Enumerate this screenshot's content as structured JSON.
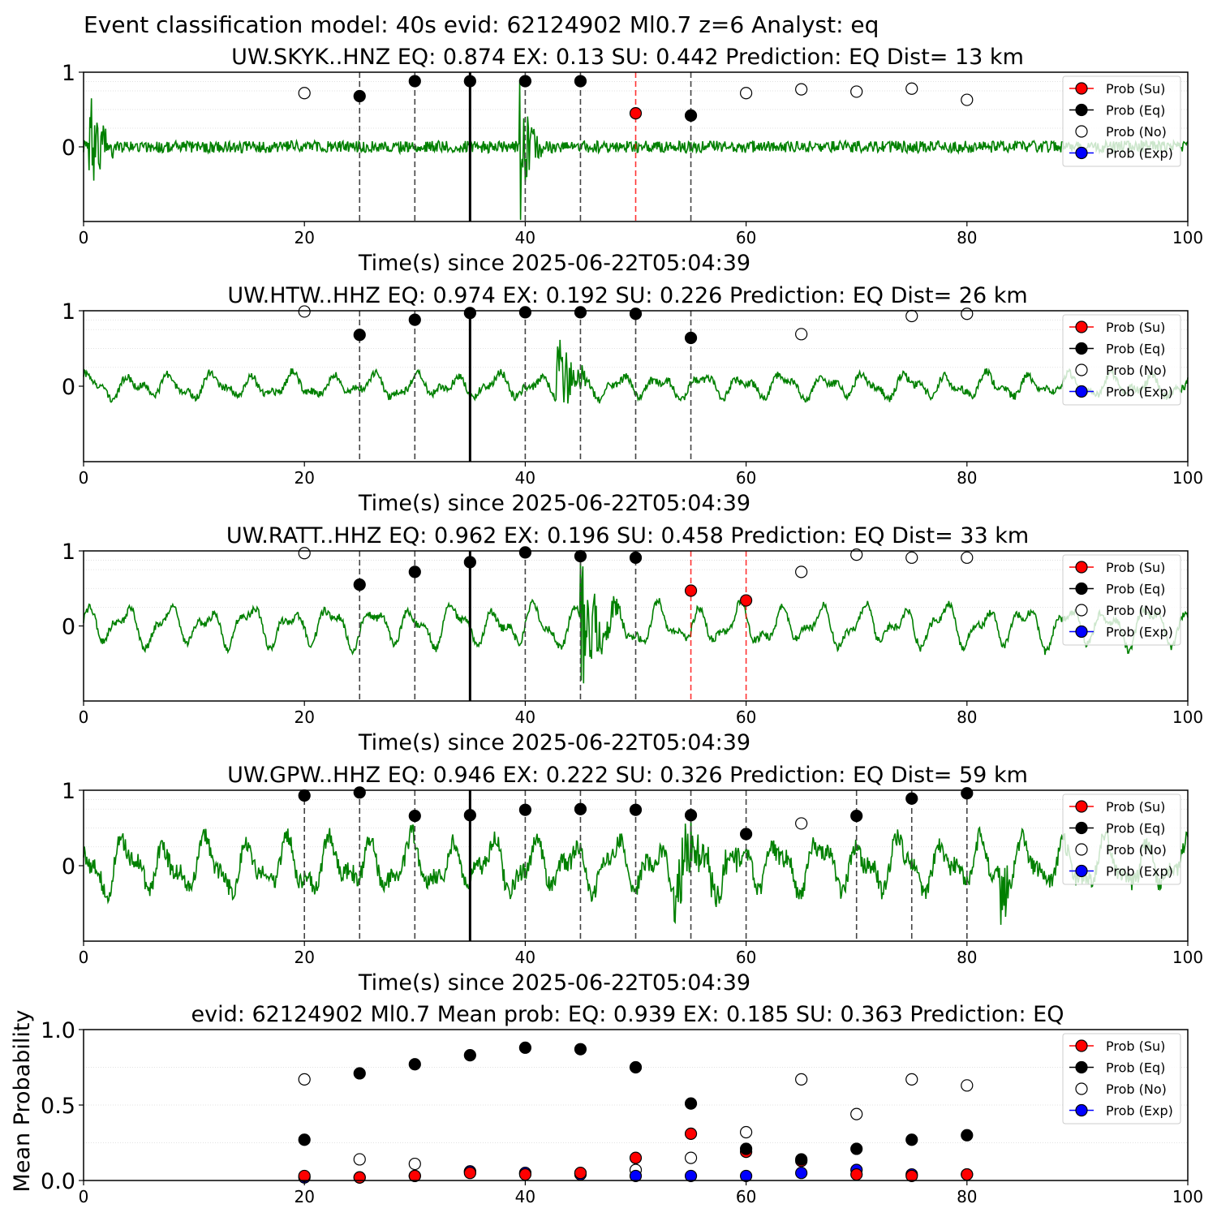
{
  "figure": {
    "suptitle": "Event classification model: 40s evid: 62124902 Ml0.7 z=6 Analyst: eq",
    "colors": {
      "eq": "#000000",
      "su": "#ff0000",
      "no": "#ffffff",
      "exp": "#0000ff",
      "trace": "#008000",
      "trace_overlay": "#c8e6c9",
      "grid": "#d9d9d9"
    }
  },
  "legend_items": [
    "Prob (Su)",
    "Prob (Eq)",
    "Prob (No)",
    "Prob (Exp)"
  ],
  "chart_data": [
    {
      "type": "line",
      "title": "UW.SKYK..HNZ   EQ: 0.874  EX: 0.13  SU: 0.442   Prediction: EQ    Dist= 13 km",
      "xlabel": "Time(s) since 2025-06-22T05:04:39",
      "ylabel": "",
      "xlim": [
        0,
        100
      ],
      "ylim": [
        -1,
        1
      ],
      "xticks": [
        "0",
        "20",
        "40",
        "60",
        "80",
        "100"
      ],
      "yticks": [
        "0",
        "1"
      ],
      "legend": "upper-right",
      "pick_line": 35,
      "window_lines": [
        {
          "x": 25,
          "c": "eq"
        },
        {
          "x": 30,
          "c": "eq"
        },
        {
          "x": 40,
          "c": "eq"
        },
        {
          "x": 45,
          "c": "eq"
        },
        {
          "x": 50,
          "c": "su"
        },
        {
          "x": 55,
          "c": "eq"
        }
      ],
      "bursts": [
        [
          0.5,
          1.0,
          0.8
        ],
        [
          39.5,
          0.9,
          1.0
        ]
      ],
      "noise_amp": 0.08,
      "wave_amp": 0.0,
      "series": [
        {
          "name": "Prob (Eq)",
          "points": [
            [
              25,
              0.68
            ],
            [
              30,
              0.88
            ],
            [
              35,
              0.88
            ],
            [
              40,
              0.88
            ],
            [
              45,
              0.88
            ],
            [
              55,
              0.42
            ]
          ]
        },
        {
          "name": "Prob (Su)",
          "points": [
            [
              50,
              0.45
            ]
          ]
        },
        {
          "name": "Prob (No)",
          "points": [
            [
              20,
              0.72
            ],
            [
              60,
              0.72
            ],
            [
              65,
              0.77
            ],
            [
              70,
              0.74
            ],
            [
              75,
              0.78
            ],
            [
              80,
              0.63
            ]
          ]
        },
        {
          "name": "Prob (Exp)",
          "points": []
        }
      ]
    },
    {
      "type": "line",
      "title": "UW.HTW..HHZ   EQ: 0.974  EX: 0.192  SU: 0.226   Prediction: EQ    Dist= 26 km",
      "xlabel": "Time(s) since 2025-06-22T05:04:39",
      "ylabel": "",
      "xlim": [
        0,
        100
      ],
      "ylim": [
        -1,
        1
      ],
      "xticks": [
        "0",
        "20",
        "40",
        "60",
        "80",
        "100"
      ],
      "yticks": [
        "0",
        "1"
      ],
      "legend": "upper-right",
      "pick_line": 35,
      "window_lines": [
        {
          "x": 25,
          "c": "eq"
        },
        {
          "x": 30,
          "c": "eq"
        },
        {
          "x": 40,
          "c": "eq"
        },
        {
          "x": 45,
          "c": "eq"
        },
        {
          "x": 50,
          "c": "eq"
        },
        {
          "x": 55,
          "c": "eq"
        }
      ],
      "bursts": [
        [
          42.8,
          1.2,
          0.95
        ]
      ],
      "noise_amp": 0.05,
      "wave_amp": 0.2,
      "series": [
        {
          "name": "Prob (Eq)",
          "points": [
            [
              25,
              0.68
            ],
            [
              30,
              0.88
            ],
            [
              35,
              0.97
            ],
            [
              40,
              0.98
            ],
            [
              45,
              0.98
            ],
            [
              50,
              0.96
            ],
            [
              55,
              0.64
            ]
          ]
        },
        {
          "name": "Prob (Su)",
          "points": []
        },
        {
          "name": "Prob (No)",
          "points": [
            [
              20,
              0.99
            ],
            [
              65,
              0.69
            ],
            [
              75,
              0.93
            ],
            [
              80,
              0.96
            ]
          ]
        },
        {
          "name": "Prob (Exp)",
          "points": []
        }
      ]
    },
    {
      "type": "line",
      "title": "UW.RATT..HHZ   EQ: 0.962  EX: 0.196  SU: 0.458   Prediction: EQ    Dist= 33 km",
      "xlabel": "Time(s) since 2025-06-22T05:04:39",
      "ylabel": "",
      "xlim": [
        0,
        100
      ],
      "ylim": [
        -1,
        1
      ],
      "xticks": [
        "0",
        "20",
        "40",
        "60",
        "80",
        "100"
      ],
      "yticks": [
        "0",
        "1"
      ],
      "legend": "upper-right",
      "pick_line": 35,
      "window_lines": [
        {
          "x": 25,
          "c": "eq"
        },
        {
          "x": 30,
          "c": "eq"
        },
        {
          "x": 40,
          "c": "eq"
        },
        {
          "x": 45,
          "c": "eq"
        },
        {
          "x": 50,
          "c": "eq"
        },
        {
          "x": 55,
          "c": "su"
        },
        {
          "x": 60,
          "c": "su"
        }
      ],
      "bursts": [
        [
          45.0,
          1.5,
          1.0
        ]
      ],
      "noise_amp": 0.05,
      "wave_amp": 0.35,
      "series": [
        {
          "name": "Prob (Eq)",
          "points": [
            [
              25,
              0.55
            ],
            [
              30,
              0.72
            ],
            [
              35,
              0.85
            ],
            [
              40,
              0.98
            ],
            [
              45,
              0.93
            ],
            [
              50,
              0.91
            ]
          ]
        },
        {
          "name": "Prob (Su)",
          "points": [
            [
              55,
              0.47
            ],
            [
              60,
              0.34
            ]
          ]
        },
        {
          "name": "Prob (No)",
          "points": [
            [
              20,
              0.97
            ],
            [
              65,
              0.72
            ],
            [
              70,
              0.95
            ],
            [
              75,
              0.91
            ],
            [
              80,
              0.91
            ]
          ]
        },
        {
          "name": "Prob (Exp)",
          "points": []
        }
      ]
    },
    {
      "type": "line",
      "title": "UW.GPW..HHZ   EQ: 0.946  EX: 0.222  SU: 0.326   Prediction: EQ    Dist= 59 km",
      "xlabel": "Time(s) since 2025-06-22T05:04:39",
      "ylabel": "",
      "xlim": [
        0,
        100
      ],
      "ylim": [
        -1,
        1
      ],
      "xticks": [
        "0",
        "20",
        "40",
        "60",
        "80",
        "100"
      ],
      "yticks": [
        "0",
        "1"
      ],
      "legend": "upper-right",
      "pick_line": 35,
      "window_lines": [
        {
          "x": 20,
          "c": "eq"
        },
        {
          "x": 25,
          "c": "eq"
        },
        {
          "x": 30,
          "c": "eq"
        },
        {
          "x": 40,
          "c": "eq"
        },
        {
          "x": 45,
          "c": "eq"
        },
        {
          "x": 50,
          "c": "eq"
        },
        {
          "x": 55,
          "c": "eq"
        },
        {
          "x": 60,
          "c": "eq"
        },
        {
          "x": 70,
          "c": "eq"
        },
        {
          "x": 75,
          "c": "eq"
        },
        {
          "x": 80,
          "c": "eq"
        }
      ],
      "bursts": [
        [
          53.5,
          3.0,
          0.6
        ],
        [
          83.0,
          0.6,
          0.8
        ]
      ],
      "noise_amp": 0.12,
      "wave_amp": 0.45,
      "series": [
        {
          "name": "Prob (Eq)",
          "points": [
            [
              20,
              0.93
            ],
            [
              25,
              0.97
            ],
            [
              30,
              0.66
            ],
            [
              35,
              0.67
            ],
            [
              40,
              0.74
            ],
            [
              45,
              0.75
            ],
            [
              50,
              0.74
            ],
            [
              55,
              0.67
            ],
            [
              60,
              0.42
            ],
            [
              70,
              0.66
            ],
            [
              75,
              0.89
            ],
            [
              80,
              0.96
            ]
          ]
        },
        {
          "name": "Prob (Su)",
          "points": []
        },
        {
          "name": "Prob (No)",
          "points": [
            [
              65,
              0.56
            ]
          ]
        },
        {
          "name": "Prob (Exp)",
          "points": []
        }
      ]
    },
    {
      "type": "scatter",
      "title": "evid: 62124902  Ml0.7   Mean prob:   EQ: 0.939  EX: 0.185  SU: 0.363   Prediction: EQ",
      "xlabel": "",
      "ylabel": "Mean Probability",
      "xlim": [
        0,
        100
      ],
      "ylim": [
        0,
        1
      ],
      "xticks": [
        "0",
        "20",
        "40",
        "60",
        "80",
        "100"
      ],
      "yticks": [
        "0.0",
        "0.5",
        "1.0"
      ],
      "legend": "upper-right",
      "series": [
        {
          "name": "Prob (No)",
          "points": [
            [
              20,
              0.67
            ],
            [
              25,
              0.14
            ],
            [
              30,
              0.11
            ],
            [
              35,
              0.06
            ],
            [
              40,
              0.05
            ],
            [
              45,
              0.05
            ],
            [
              50,
              0.07
            ],
            [
              55,
              0.15
            ],
            [
              60,
              0.32
            ],
            [
              65,
              0.67
            ],
            [
              70,
              0.44
            ],
            [
              75,
              0.67
            ],
            [
              80,
              0.63
            ]
          ]
        },
        {
          "name": "Prob (Exp)",
          "points": [
            [
              20,
              0.02
            ],
            [
              25,
              0.02
            ],
            [
              30,
              0.03
            ],
            [
              35,
              0.06
            ],
            [
              40,
              0.05
            ],
            [
              45,
              0.04
            ],
            [
              50,
              0.03
            ],
            [
              55,
              0.03
            ],
            [
              60,
              0.03
            ],
            [
              65,
              0.05
            ],
            [
              70,
              0.07
            ],
            [
              75,
              0.04
            ],
            [
              80,
              0.04
            ]
          ]
        },
        {
          "name": "Prob (Su)",
          "points": [
            [
              20,
              0.03
            ],
            [
              25,
              0.02
            ],
            [
              30,
              0.03
            ],
            [
              35,
              0.05
            ],
            [
              40,
              0.04
            ],
            [
              45,
              0.05
            ],
            [
              50,
              0.15
            ],
            [
              55,
              0.31
            ],
            [
              60,
              0.19
            ],
            [
              65,
              0.13
            ],
            [
              70,
              0.04
            ],
            [
              75,
              0.03
            ],
            [
              80,
              0.04
            ]
          ]
        },
        {
          "name": "Prob (Eq)",
          "points": [
            [
              20,
              0.27
            ],
            [
              25,
              0.71
            ],
            [
              30,
              0.77
            ],
            [
              35,
              0.83
            ],
            [
              40,
              0.88
            ],
            [
              45,
              0.87
            ],
            [
              50,
              0.75
            ],
            [
              55,
              0.51
            ],
            [
              60,
              0.21
            ],
            [
              65,
              0.14
            ],
            [
              70,
              0.21
            ],
            [
              75,
              0.27
            ],
            [
              80,
              0.3
            ]
          ]
        }
      ]
    }
  ]
}
